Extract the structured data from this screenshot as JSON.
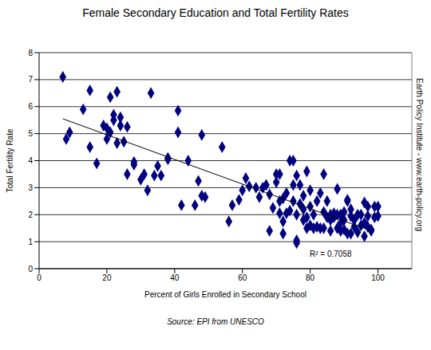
{
  "chart_data": {
    "type": "scatter",
    "title": "Female Secondary Education and Total Fertility Rates",
    "xlabel": "Percent of Girls Enrolled in Secondary School",
    "ylabel": "Total Fertility Rate",
    "source": "Source: EPI from UNESCO",
    "credit": "Earth Policy Institute - www.earth-policy.org",
    "annotation": "R² = 0.7058",
    "color": "#000080",
    "marker": "diamond",
    "grid": true,
    "xlim": [
      0,
      110
    ],
    "xticks": [
      0,
      20,
      40,
      60,
      80,
      100
    ],
    "ylim": [
      0,
      8
    ],
    "yticks": [
      0,
      1,
      2,
      3,
      4,
      5,
      6,
      7,
      8
    ],
    "x": [
      7,
      8,
      9,
      13,
      15,
      15,
      17,
      19,
      20,
      20,
      21,
      21,
      22,
      22,
      23,
      23,
      24,
      24,
      25,
      26,
      26,
      28,
      28,
      30,
      31,
      32,
      33,
      34,
      35,
      36,
      38,
      38,
      41,
      41,
      42,
      44,
      46,
      47,
      48,
      48,
      49,
      54,
      56,
      57,
      59,
      60,
      61,
      62,
      64,
      65,
      66,
      67,
      68,
      68,
      69,
      70,
      70,
      71,
      71,
      71,
      72,
      72,
      72,
      73,
      73,
      74,
      74,
      75,
      75,
      75,
      76,
      76,
      76,
      76,
      77,
      77,
      78,
      78,
      78,
      79,
      79,
      80,
      80,
      80,
      81,
      81,
      82,
      82,
      83,
      83,
      84,
      84,
      85,
      85,
      86,
      86,
      86,
      87,
      87,
      88,
      88,
      89,
      89,
      89,
      90,
      90,
      90,
      91,
      91,
      91,
      92,
      92,
      92,
      93,
      93,
      94,
      94,
      95,
      95,
      96,
      96,
      96,
      97,
      97,
      98,
      98,
      99,
      99,
      100,
      100,
      97,
      88,
      84,
      79
    ],
    "values": [
      7.1,
      4.8,
      5.05,
      5.9,
      6.6,
      4.5,
      3.9,
      5.3,
      5.2,
      4.8,
      6.35,
      5.05,
      5.5,
      5.7,
      4.65,
      6.55,
      5.6,
      5.3,
      4.7,
      5.25,
      3.5,
      3.85,
      3.95,
      3.3,
      3.5,
      2.9,
      6.5,
      3.45,
      3.8,
      3.45,
      4.1,
      4.05,
      5.85,
      5.05,
      2.35,
      4.0,
      2.35,
      3.25,
      4.95,
      2.7,
      2.65,
      4.5,
      1.75,
      2.35,
      2.55,
      2.9,
      3.35,
      3.05,
      3.0,
      2.65,
      3.0,
      3.1,
      2.75,
      1.4,
      2.25,
      3.5,
      3.2,
      3.5,
      2.5,
      2.05,
      2.6,
      1.75,
      1.3,
      2.05,
      2.8,
      4.0,
      2.15,
      3.1,
      2.5,
      4.0,
      1.05,
      0.95,
      3.45,
      2.0,
      2.4,
      3.1,
      2.7,
      1.8,
      2.2,
      3.6,
      1.5,
      2.9,
      1.6,
      2.3,
      1.5,
      2.0,
      1.55,
      2.5,
      1.5,
      2.8,
      2.1,
      3.5,
      1.9,
      2.5,
      1.8,
      1.4,
      2.0,
      2.05,
      1.9,
      2.0,
      2.95,
      1.4,
      1.7,
      2.0,
      2.1,
      1.45,
      1.8,
      2.5,
      1.3,
      2.55,
      1.95,
      1.3,
      2.2,
      1.55,
      1.8,
      1.35,
      2.0,
      1.6,
      2.0,
      1.7,
      2.45,
      1.2,
      2.3,
      1.95,
      1.45,
      1.4,
      2.3,
      1.9,
      2.3,
      1.95,
      1.55,
      1.5,
      1.5,
      1.9
    ],
    "trendline": {
      "x": [
        7,
        98
      ],
      "values": [
        5.55,
        1.4
      ]
    }
  }
}
